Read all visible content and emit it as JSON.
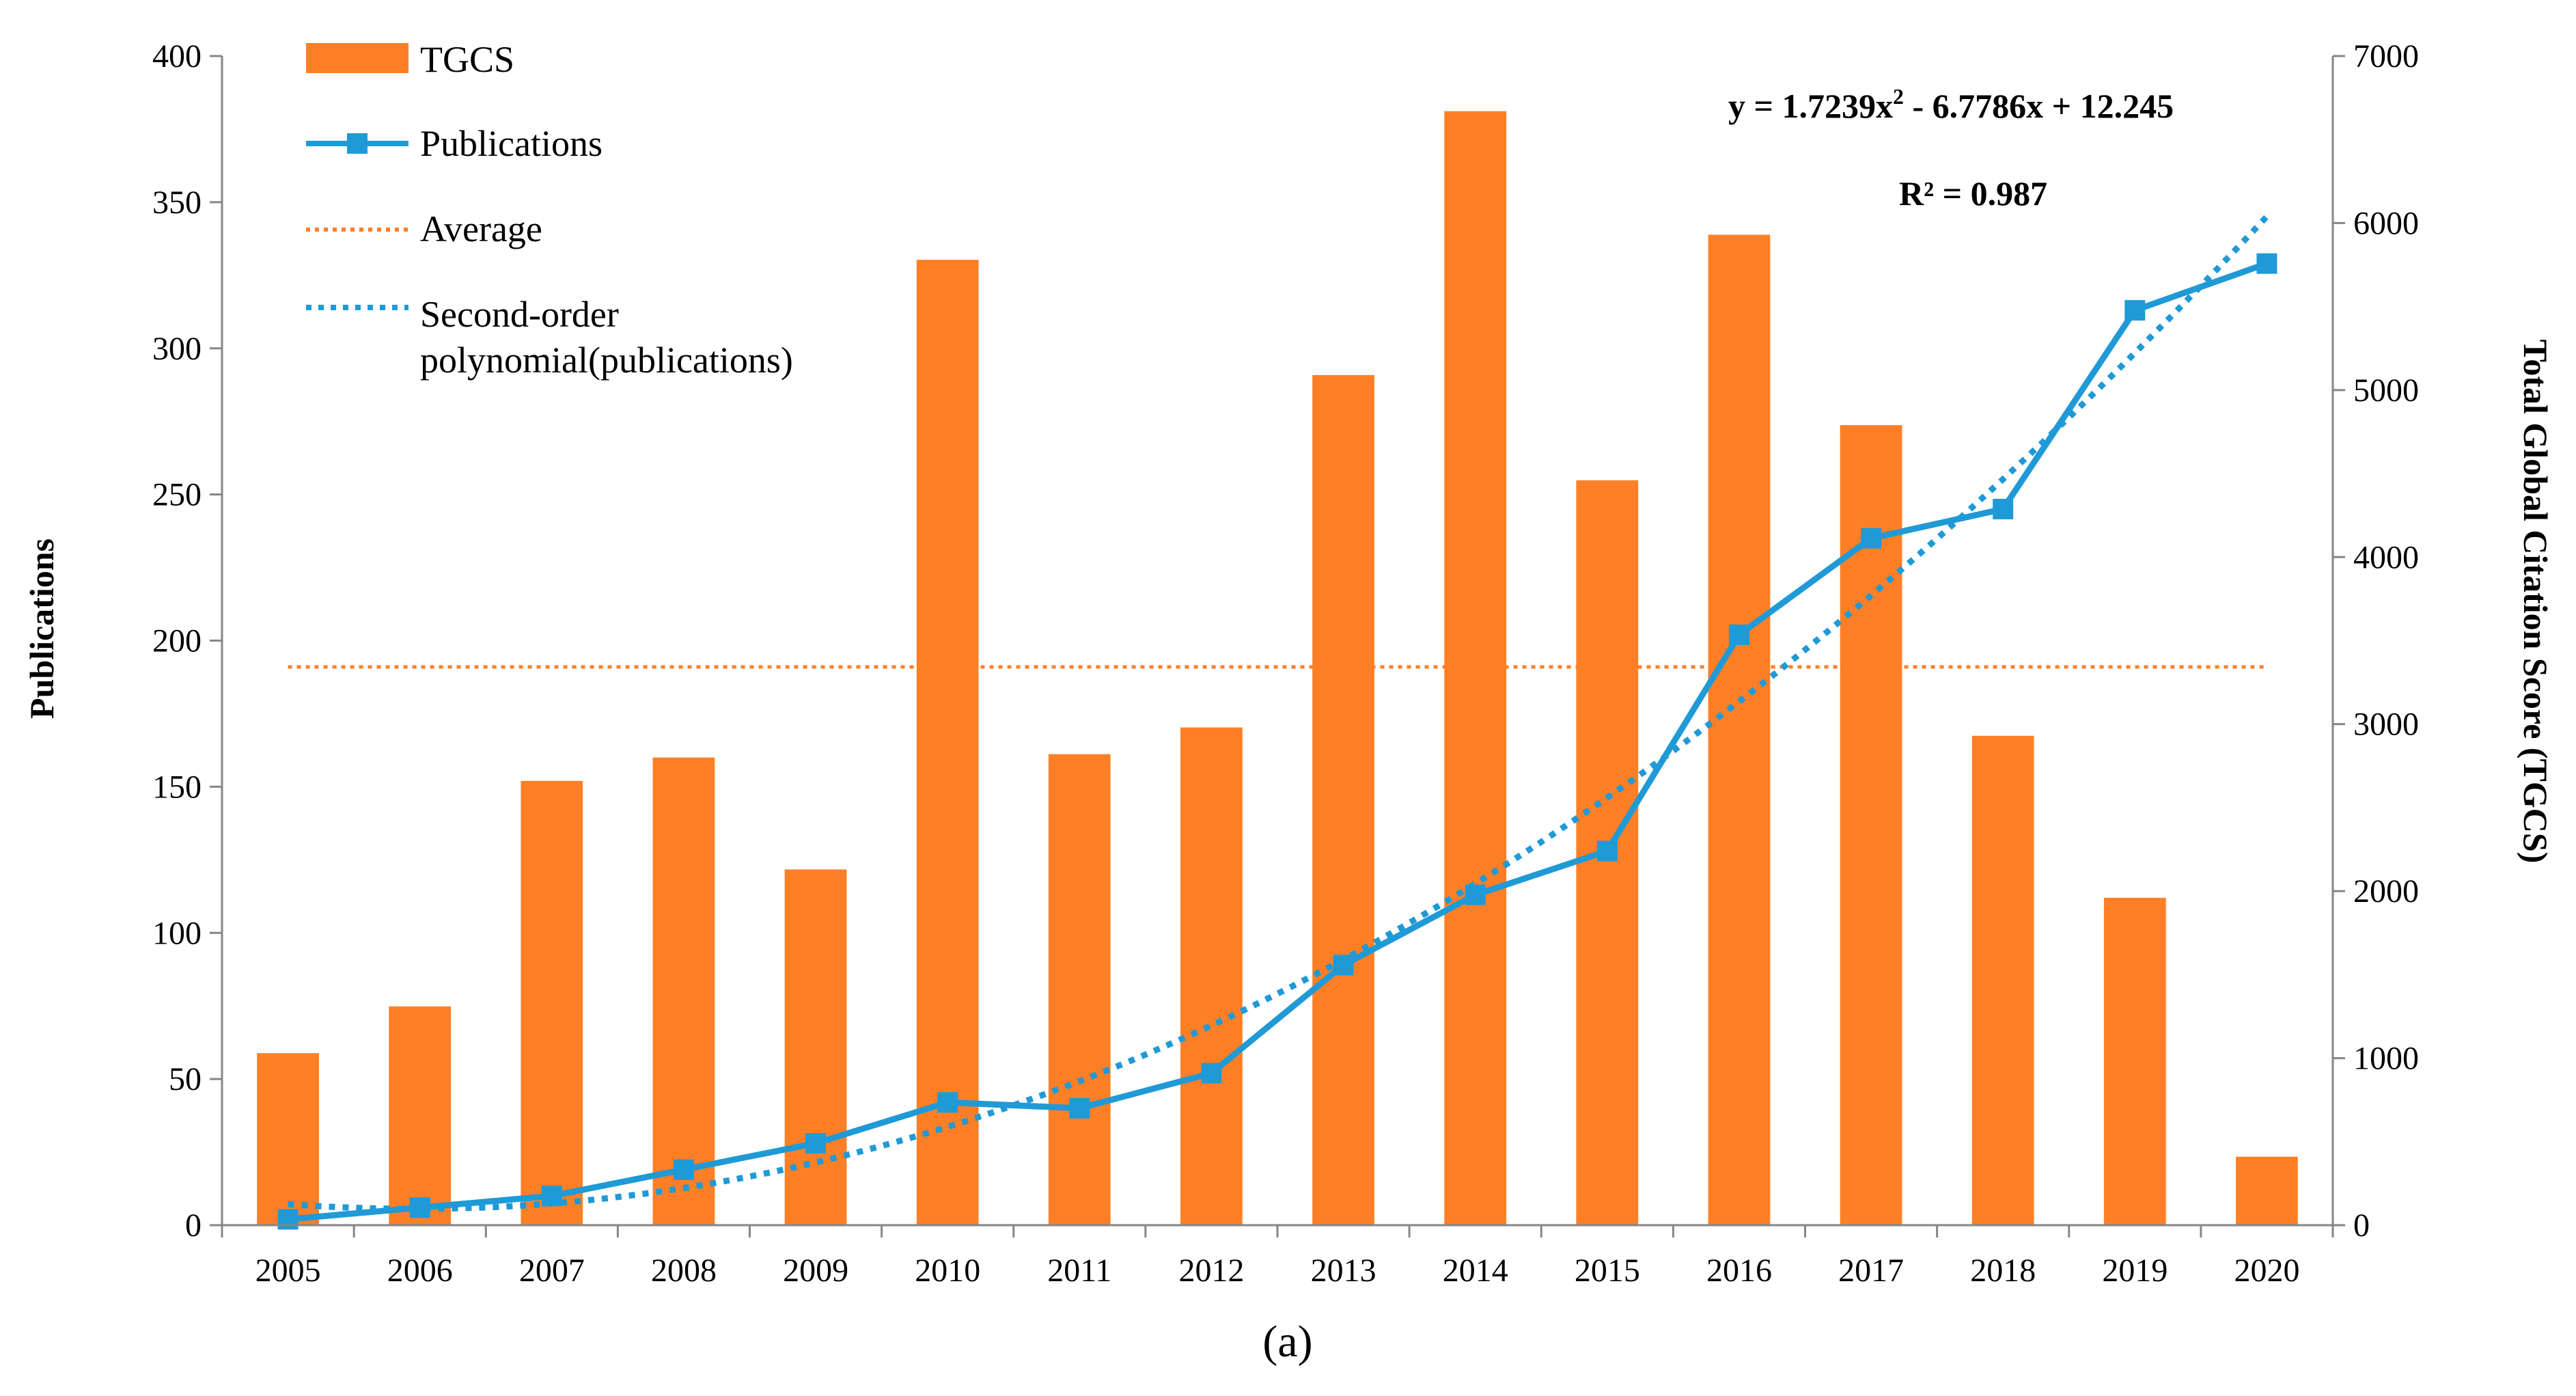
{
  "chart_data": {
    "type": "bar+line",
    "x": [
      "2005",
      "2006",
      "2007",
      "2008",
      "2009",
      "2010",
      "2011",
      "2012",
      "2013",
      "2014",
      "2015",
      "2016",
      "2017",
      "2018",
      "2019",
      "2020"
    ],
    "series": [
      {
        "name": "TGCS",
        "type": "bar",
        "axis": "right",
        "color": "#FF7F27",
        "values": [
          1030,
          1310,
          2660,
          2800,
          2130,
          5780,
          2820,
          2980,
          5090,
          6670,
          4460,
          5930,
          4790,
          2930,
          1960,
          410
        ]
      },
      {
        "name": "Publications",
        "type": "line",
        "axis": "left",
        "color": "#1F9AD6",
        "marker": "square",
        "values": [
          2,
          6,
          10,
          19,
          28,
          42,
          40,
          52,
          89,
          113,
          128,
          202,
          235,
          245,
          313,
          329
        ]
      },
      {
        "name": "Average",
        "type": "line",
        "style": "dotted",
        "axis": "left",
        "color": "#FF7F27",
        "values": [
          191,
          191,
          191,
          191,
          191,
          191,
          191,
          191,
          191,
          191,
          191,
          191,
          191,
          191,
          191,
          191
        ]
      },
      {
        "name": "Second-order polynomial(publications)",
        "name_lines": [
          "Second-order",
          "polynomial(publications)"
        ],
        "type": "trendline",
        "style": "dotted",
        "axis": "left",
        "color": "#1F9AD6",
        "formula": {
          "a": 1.7239,
          "b": -6.7786,
          "c": 12.245
        }
      }
    ],
    "ylabel": "Publications",
    "y2label": "Total Global Citation Score (TGCS)",
    "ylim": [
      0,
      400
    ],
    "yticks": [
      0,
      50,
      100,
      150,
      200,
      250,
      300,
      350,
      400
    ],
    "y2lim": [
      0,
      7000
    ],
    "y2ticks": [
      0,
      1000,
      2000,
      3000,
      4000,
      5000,
      6000,
      7000
    ],
    "equation": "y = 1.7239x² - 6.7786x + 12.245",
    "equation_parts": {
      "lead": "y = 1.7239x",
      "sup": "2",
      "tail": " - 6.7786x + 12.245"
    },
    "r_squared": "R² = 0.987",
    "caption": "(a)",
    "legend_position": "top-left",
    "grid": false
  }
}
